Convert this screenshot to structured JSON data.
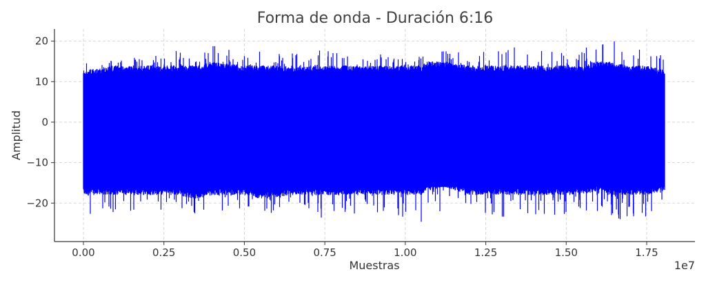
{
  "chart_data": {
    "type": "line",
    "title": "Forma de onda - Duración 6:16",
    "xlabel": "Muestras",
    "ylabel": "Amplitud",
    "x_offset_label": "1e7",
    "x_ticks": [
      0.0,
      0.25,
      0.5,
      0.75,
      1.0,
      1.25,
      1.5,
      1.75
    ],
    "x_tick_labels": [
      "0.00",
      "0.25",
      "0.50",
      "0.75",
      "1.00",
      "1.25",
      "1.50",
      "1.75"
    ],
    "y_ticks": [
      -20,
      -10,
      0,
      10,
      20
    ],
    "y_tick_labels": [
      "−20",
      "−10",
      "0",
      "10",
      "20"
    ],
    "xlim": [
      -0.09,
      1.9
    ],
    "ylim": [
      -29.5,
      23.0
    ],
    "grid": true,
    "series": [
      {
        "color": "#0000ff",
        "x_range": [
          0.0,
          1.806
        ],
        "envelope": {
          "x": [
            0.0,
            0.02,
            0.1,
            0.2,
            0.29,
            0.35,
            0.4,
            0.5,
            0.55,
            0.65,
            0.75,
            0.85,
            0.95,
            1.0,
            1.05,
            1.07,
            1.12,
            1.2,
            1.3,
            1.4,
            1.5,
            1.55,
            1.6,
            1.62,
            1.63,
            1.7,
            1.75,
            1.8
          ],
          "upper": [
            16,
            14,
            16,
            16,
            18,
            15,
            19,
            17,
            18,
            17,
            18,
            16,
            17,
            17,
            16,
            20,
            18,
            17,
            19,
            18,
            17,
            19,
            18,
            20,
            21,
            19,
            18,
            17
          ],
          "lower": [
            -20,
            -27,
            -23,
            -22,
            -22,
            -23,
            -22,
            -22,
            -23,
            -22,
            -24,
            -23,
            -22,
            -24,
            -26,
            -23,
            -22,
            -22,
            -25,
            -23,
            -24,
            -23,
            -22,
            -22,
            -23,
            -25,
            -25,
            -20
          ],
          "dense_upper": [
            13,
            13,
            14,
            14,
            14,
            14,
            15,
            14,
            14,
            14,
            14,
            14,
            14,
            14,
            14,
            15,
            15,
            14,
            14,
            14,
            14,
            14,
            15,
            15,
            15,
            14,
            14,
            13
          ],
          "dense_lower": [
            -18,
            -18,
            -18,
            -18,
            -18,
            -19,
            -18,
            -18,
            -19,
            -18,
            -18,
            -18,
            -18,
            -18,
            -18,
            -17,
            -16,
            -18,
            -18,
            -18,
            -18,
            -18,
            -17,
            -17,
            -18,
            -18,
            -18,
            -17
          ]
        }
      }
    ]
  }
}
